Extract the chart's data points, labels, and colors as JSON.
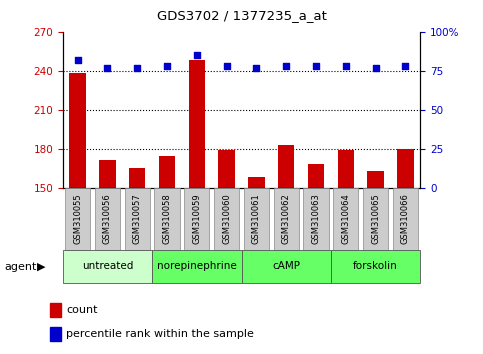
{
  "title": "GDS3702 / 1377235_a_at",
  "samples": [
    "GSM310055",
    "GSM310056",
    "GSM310057",
    "GSM310058",
    "GSM310059",
    "GSM310060",
    "GSM310061",
    "GSM310062",
    "GSM310063",
    "GSM310064",
    "GSM310065",
    "GSM310066"
  ],
  "bar_values": [
    238,
    171,
    165,
    174,
    248,
    179,
    158,
    183,
    168,
    179,
    163,
    180
  ],
  "percentile_values": [
    82,
    77,
    77,
    78,
    85,
    78,
    77,
    78,
    78,
    78,
    77,
    78
  ],
  "bar_color": "#cc0000",
  "dot_color": "#0000cc",
  "ylim_left": [
    150,
    270
  ],
  "ylim_right": [
    0,
    100
  ],
  "yticks_left": [
    150,
    180,
    210,
    240,
    270
  ],
  "yticks_right": [
    0,
    25,
    50,
    75,
    100
  ],
  "groups": [
    {
      "label": "untreated",
      "start": 0,
      "end": 3,
      "color": "#ccffcc"
    },
    {
      "label": "norepinephrine",
      "start": 3,
      "end": 6,
      "color": "#66ff66"
    },
    {
      "label": "cAMP",
      "start": 6,
      "end": 9,
      "color": "#66ff66"
    },
    {
      "label": "forskolin",
      "start": 9,
      "end": 12,
      "color": "#66ff66"
    }
  ],
  "agent_label": "agent",
  "legend_count": "count",
  "legend_percentile": "percentile rank within the sample",
  "background_color": "#ffffff",
  "tick_label_color_left": "#cc0000",
  "tick_label_color_right": "#0000cc",
  "sample_box_color": "#cccccc",
  "sample_box_edgecolor": "#888888",
  "dotted_lines": [
    180,
    210,
    240
  ]
}
